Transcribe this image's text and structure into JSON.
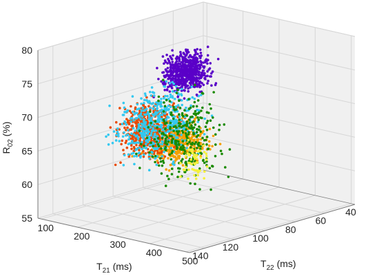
{
  "chart_data": {
    "type": "scatter",
    "dimensions": 3,
    "xlabel": {
      "main": "T",
      "sub": "21",
      "unit": " (ms)"
    },
    "ylabel": {
      "main": "T",
      "sub": "22",
      "unit": " (ms)"
    },
    "zlabel": {
      "main": "R",
      "sub": "02",
      "unit": " (%)"
    },
    "xlim": [
      40,
      150
    ],
    "ylim": [
      90,
      510
    ],
    "zlim": [
      55,
      80
    ],
    "x_ticks": [
      40,
      60,
      80,
      100,
      120,
      140
    ],
    "y_ticks": [
      100,
      200,
      300,
      400,
      500
    ],
    "z_ticks": [
      55,
      60,
      65,
      70,
      75,
      80
    ],
    "grid": true,
    "series": [
      {
        "color": "#5a00c8",
        "count": 650,
        "x_range": [
          50,
          90
        ],
        "y_range": [
          100,
          230
        ],
        "z_range": [
          68,
          77
        ]
      },
      {
        "color": "#f5a000",
        "count": 480,
        "x_range": [
          55,
          105
        ],
        "y_range": [
          100,
          260
        ],
        "z_range": [
          58,
          68
        ]
      },
      {
        "color": "#e84a00",
        "count": 520,
        "x_range": [
          75,
          125
        ],
        "y_range": [
          110,
          260
        ],
        "z_range": [
          60,
          72
        ]
      },
      {
        "color": "#33c8f0",
        "count": 520,
        "x_range": [
          70,
          145
        ],
        "y_range": [
          140,
          350
        ],
        "z_range": [
          60,
          76
        ]
      },
      {
        "color": "#1a8a00",
        "count": 300,
        "x_range": [
          85,
          150
        ],
        "y_range": [
          250,
          470
        ],
        "z_range": [
          57,
          79
        ]
      },
      {
        "color": "#f5f03c",
        "count": 55,
        "x_range": [
          120,
          150
        ],
        "y_range": [
          420,
          510
        ],
        "z_range": [
          62,
          72
        ]
      }
    ]
  },
  "colors": {
    "pane": "#f0f0f0",
    "grid": "#d6d6d6",
    "axis": "#777777",
    "text": "#222222"
  }
}
